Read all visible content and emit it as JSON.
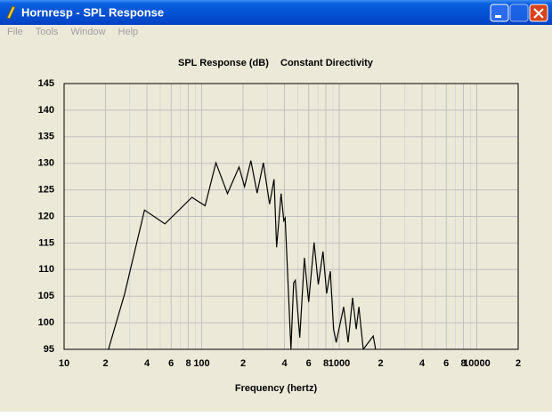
{
  "window": {
    "title": "Hornresp - SPL Response",
    "menu": [
      "File",
      "Tools",
      "Window",
      "Help"
    ]
  },
  "chart_data": {
    "type": "line",
    "title": "SPL Response (dB)",
    "subtitle": "Constant Directivity",
    "x_label": "Frequency (hertz)",
    "xlog": true,
    "grid": true,
    "xlim": [
      10,
      20000
    ],
    "ylim": [
      95,
      145
    ],
    "xticks": [
      10,
      {
        "value": 20,
        "label": "2"
      },
      {
        "value": 40,
        "label": "4"
      },
      {
        "value": 60,
        "label": "6"
      },
      {
        "value": 80,
        "label": "8"
      },
      100,
      {
        "value": 200,
        "label": "2"
      },
      {
        "value": 400,
        "label": "4"
      },
      {
        "value": 600,
        "label": "6"
      },
      {
        "value": 800,
        "label": "8"
      },
      1000,
      {
        "value": 2000,
        "label": "2"
      },
      {
        "value": 4000,
        "label": "4"
      },
      {
        "value": 6000,
        "label": "6"
      },
      {
        "value": 8000,
        "label": "8"
      },
      10000,
      {
        "value": 20000,
        "label": "2"
      }
    ],
    "xminor": [
      30,
      50,
      70,
      90,
      300,
      500,
      700,
      900,
      3000,
      5000,
      7000,
      9000
    ],
    "yticks": [
      95,
      100,
      105,
      110,
      115,
      120,
      125,
      130,
      135,
      140,
      145
    ],
    "series": [
      {
        "name": "SPL",
        "color": "#000000",
        "x": [
          21,
          27.6,
          38.4,
          54,
          85,
          106,
          127,
          154,
          187,
          205,
          228,
          253,
          281,
          312,
          336,
          351,
          378,
          396,
          405,
          446,
          466,
          480,
          517,
          558,
          600,
          657,
          705,
          763,
          810,
          861,
          910,
          950,
          1077,
          1160,
          1250,
          1330,
          1390,
          1496,
          1767,
          1840
        ],
        "values": [
          95,
          105.5,
          121.2,
          118.6,
          123.6,
          122,
          130.1,
          124.3,
          129.3,
          125.6,
          130.5,
          124.4,
          130.1,
          122.3,
          127,
          114.2,
          124.3,
          119.2,
          119.7,
          95,
          107.5,
          108,
          97.2,
          112.2,
          103.9,
          115.1,
          107.2,
          113.4,
          105.5,
          109.7,
          98.8,
          96.3,
          103,
          96.3,
          104.7,
          98.8,
          103,
          95,
          97.5,
          95
        ]
      }
    ]
  }
}
